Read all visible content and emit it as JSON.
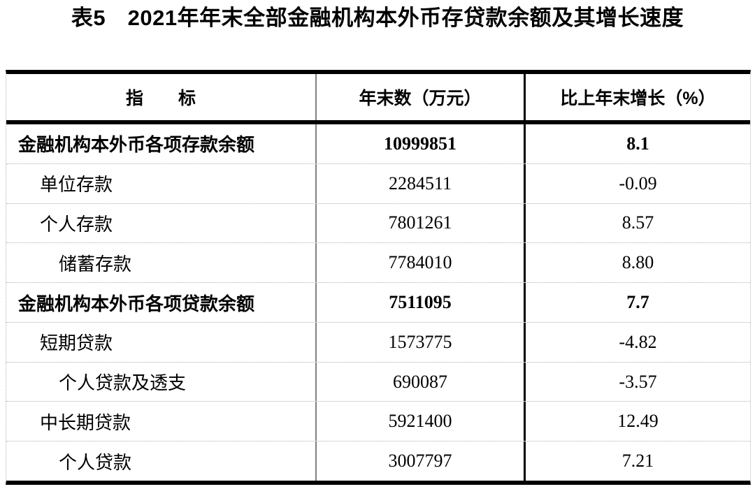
{
  "title": "表5　2021年年末全部金融机构本外币存贷款余额及其增长速度",
  "table": {
    "headers": [
      "指　　标",
      "年末数（万元）",
      "比上年末增长（%）"
    ],
    "rows": [
      {
        "indicator": "金融机构本外币各项存款余额",
        "value": "10999851",
        "growth": "8.1",
        "bold": true,
        "indent": 0
      },
      {
        "indicator": "单位存款",
        "value": "2284511",
        "growth": "-0.09",
        "bold": false,
        "indent": 1
      },
      {
        "indicator": "个人存款",
        "value": "7801261",
        "growth": "8.57",
        "bold": false,
        "indent": 1
      },
      {
        "indicator": "储蓄存款",
        "value": "7784010",
        "growth": "8.80",
        "bold": false,
        "indent": 2
      },
      {
        "indicator": "金融机构本外币各项贷款余额",
        "value": "7511095",
        "growth": "7.7",
        "bold": true,
        "indent": 0
      },
      {
        "indicator": "短期贷款",
        "value": "1573775",
        "growth": "-4.82",
        "bold": false,
        "indent": 1
      },
      {
        "indicator": "个人贷款及透支",
        "value": "690087",
        "growth": "-3.57",
        "bold": false,
        "indent": 2
      },
      {
        "indicator": "中长期贷款",
        "value": "5921400",
        "growth": "12.49",
        "bold": false,
        "indent": 1
      },
      {
        "indicator": "个人贷款",
        "value": "3007797",
        "growth": "7.21",
        "bold": false,
        "indent": 2
      }
    ]
  },
  "colors": {
    "text": "#000000",
    "border_heavy": "#000000",
    "divider_gray": "#808080",
    "grid_light": "#b0b0b0",
    "background": "#ffffff"
  }
}
